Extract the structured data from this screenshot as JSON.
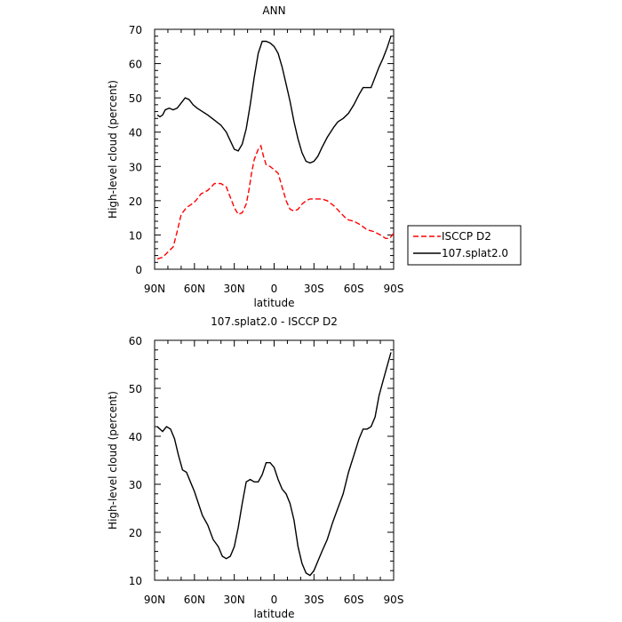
{
  "chart_data": [
    {
      "type": "line",
      "title": "ANN",
      "xlabel": "latitude",
      "ylabel": "High-level cloud (percent)",
      "ylim": [
        0,
        70
      ],
      "xlim": [
        90,
        -90
      ],
      "xticks": [
        90,
        60,
        30,
        0,
        -30,
        -60,
        -90
      ],
      "xtick_labels": [
        "90N",
        "60N",
        "30N",
        "0",
        "30S",
        "60S",
        "90S"
      ],
      "yticks": [
        0,
        10,
        20,
        30,
        40,
        50,
        60,
        70
      ],
      "ytick_labels": [
        "0",
        "10",
        "20",
        "30",
        "40",
        "50",
        "60",
        "70"
      ],
      "legend_position": "right",
      "series": [
        {
          "name": "ISCCP D2",
          "color": "#ff0000",
          "dash": true,
          "points": [
            [
              88,
              3
            ],
            [
              84,
              3.5
            ],
            [
              80,
              5
            ],
            [
              76,
              6.5
            ],
            [
              73,
              11
            ],
            [
              70,
              16
            ],
            [
              66,
              18
            ],
            [
              62,
              19
            ],
            [
              59,
              20
            ],
            [
              55,
              22
            ],
            [
              50,
              23
            ],
            [
              45,
              25
            ],
            [
              40,
              25
            ],
            [
              36,
              24
            ],
            [
              33,
              21
            ],
            [
              30,
              18
            ],
            [
              27,
              16
            ],
            [
              24,
              16.5
            ],
            [
              21,
              19
            ],
            [
              19,
              23
            ],
            [
              17,
              28
            ],
            [
              15,
              32
            ],
            [
              12,
              35
            ],
            [
              10,
              36
            ],
            [
              8,
              33
            ],
            [
              6,
              30.5
            ],
            [
              3,
              30
            ],
            [
              0,
              29
            ],
            [
              -3,
              28
            ],
            [
              -6,
              24
            ],
            [
              -9,
              20
            ],
            [
              -12,
              17.5
            ],
            [
              -15,
              17
            ],
            [
              -18,
              17.5
            ],
            [
              -21,
              19
            ],
            [
              -24,
              20
            ],
            [
              -27,
              20.5
            ],
            [
              -30,
              20.5
            ],
            [
              -33,
              20.5
            ],
            [
              -36,
              20.5
            ],
            [
              -40,
              20
            ],
            [
              -45,
              18.5
            ],
            [
              -50,
              16.5
            ],
            [
              -55,
              14.5
            ],
            [
              -60,
              14
            ],
            [
              -65,
              13
            ],
            [
              -70,
              11.5
            ],
            [
              -75,
              11
            ],
            [
              -80,
              10
            ],
            [
              -84,
              9
            ],
            [
              -87,
              9
            ],
            [
              -90,
              10.5
            ]
          ]
        },
        {
          "name": "107.splat2.0",
          "color": "#000000",
          "dash": false,
          "points": [
            [
              88,
              45
            ],
            [
              86,
              44.5
            ],
            [
              84,
              45
            ],
            [
              82,
              46.5
            ],
            [
              79,
              47
            ],
            [
              76,
              46.5
            ],
            [
              73,
              47
            ],
            [
              70,
              48.5
            ],
            [
              67,
              50
            ],
            [
              64,
              49.5
            ],
            [
              61,
              48
            ],
            [
              58,
              47
            ],
            [
              54,
              46
            ],
            [
              50,
              45
            ],
            [
              45,
              43.5
            ],
            [
              40,
              42
            ],
            [
              36,
              40
            ],
            [
              33,
              37.5
            ],
            [
              30,
              35
            ],
            [
              27,
              34.5
            ],
            [
              24,
              36.5
            ],
            [
              21,
              41
            ],
            [
              18,
              48
            ],
            [
              15,
              56
            ],
            [
              12,
              63
            ],
            [
              9,
              66.5
            ],
            [
              6,
              66.5
            ],
            [
              3,
              66
            ],
            [
              0,
              65
            ],
            [
              -3,
              63
            ],
            [
              -6,
              59
            ],
            [
              -9,
              54
            ],
            [
              -12,
              49
            ],
            [
              -15,
              43
            ],
            [
              -18,
              38
            ],
            [
              -21,
              34
            ],
            [
              -24,
              31.5
            ],
            [
              -27,
              31
            ],
            [
              -30,
              31.5
            ],
            [
              -33,
              33
            ],
            [
              -36,
              35.5
            ],
            [
              -40,
              38.5
            ],
            [
              -45,
              41.5
            ],
            [
              -48,
              43
            ],
            [
              -52,
              44
            ],
            [
              -56,
              45.5
            ],
            [
              -60,
              48
            ],
            [
              -64,
              51
            ],
            [
              -67,
              53
            ],
            [
              -70,
              53
            ],
            [
              -73,
              53
            ],
            [
              -76,
              56
            ],
            [
              -79,
              59
            ],
            [
              -82,
              61.5
            ],
            [
              -85,
              64.5
            ],
            [
              -88,
              68
            ]
          ]
        }
      ]
    },
    {
      "type": "line",
      "title": "107.splat2.0 - ISCCP D2",
      "xlabel": "latitude",
      "ylabel": "High-level cloud (percent)",
      "ylim": [
        10,
        60
      ],
      "xlim": [
        90,
        -90
      ],
      "xticks": [
        90,
        60,
        30,
        0,
        -30,
        -60,
        -90
      ],
      "xtick_labels": [
        "90N",
        "60N",
        "30N",
        "0",
        "30S",
        "60S",
        "90S"
      ],
      "yticks": [
        10,
        20,
        30,
        40,
        50,
        60
      ],
      "ytick_labels": [
        "10",
        "20",
        "30",
        "40",
        "50",
        "60"
      ],
      "series": [
        {
          "color": "#000000",
          "dash": false,
          "points": [
            [
              88,
              42
            ],
            [
              84,
              41
            ],
            [
              81,
              42
            ],
            [
              78,
              41.5
            ],
            [
              75,
              39.5
            ],
            [
              72,
              36
            ],
            [
              69,
              33
            ],
            [
              66,
              32.5
            ],
            [
              63,
              30.5
            ],
            [
              60,
              28.5
            ],
            [
              57,
              26
            ],
            [
              54,
              23.5
            ],
            [
              50,
              21.5
            ],
            [
              46,
              18.5
            ],
            [
              42,
              17
            ],
            [
              39,
              15
            ],
            [
              36,
              14.5
            ],
            [
              33,
              15
            ],
            [
              30,
              17
            ],
            [
              27,
              21
            ],
            [
              24,
              26
            ],
            [
              21,
              30.5
            ],
            [
              18,
              31
            ],
            [
              15,
              30.5
            ],
            [
              12,
              30.5
            ],
            [
              9,
              32
            ],
            [
              6,
              34.5
            ],
            [
              3,
              34.5
            ],
            [
              0,
              33.5
            ],
            [
              -3,
              31
            ],
            [
              -6,
              29
            ],
            [
              -9,
              28
            ],
            [
              -12,
              26
            ],
            [
              -15,
              22.5
            ],
            [
              -18,
              17
            ],
            [
              -21,
              13.5
            ],
            [
              -24,
              11.5
            ],
            [
              -27,
              11
            ],
            [
              -30,
              12
            ],
            [
              -33,
              14
            ],
            [
              -36,
              16
            ],
            [
              -40,
              18.5
            ],
            [
              -44,
              22
            ],
            [
              -48,
              25
            ],
            [
              -52,
              28
            ],
            [
              -56,
              32.5
            ],
            [
              -60,
              36
            ],
            [
              -64,
              39.5
            ],
            [
              -67,
              41.5
            ],
            [
              -70,
              41.5
            ],
            [
              -73,
              42
            ],
            [
              -76,
              44
            ],
            [
              -79,
              48.5
            ],
            [
              -82,
              51.5
            ],
            [
              -85,
              54.5
            ],
            [
              -88,
              57.5
            ]
          ]
        }
      ]
    }
  ]
}
